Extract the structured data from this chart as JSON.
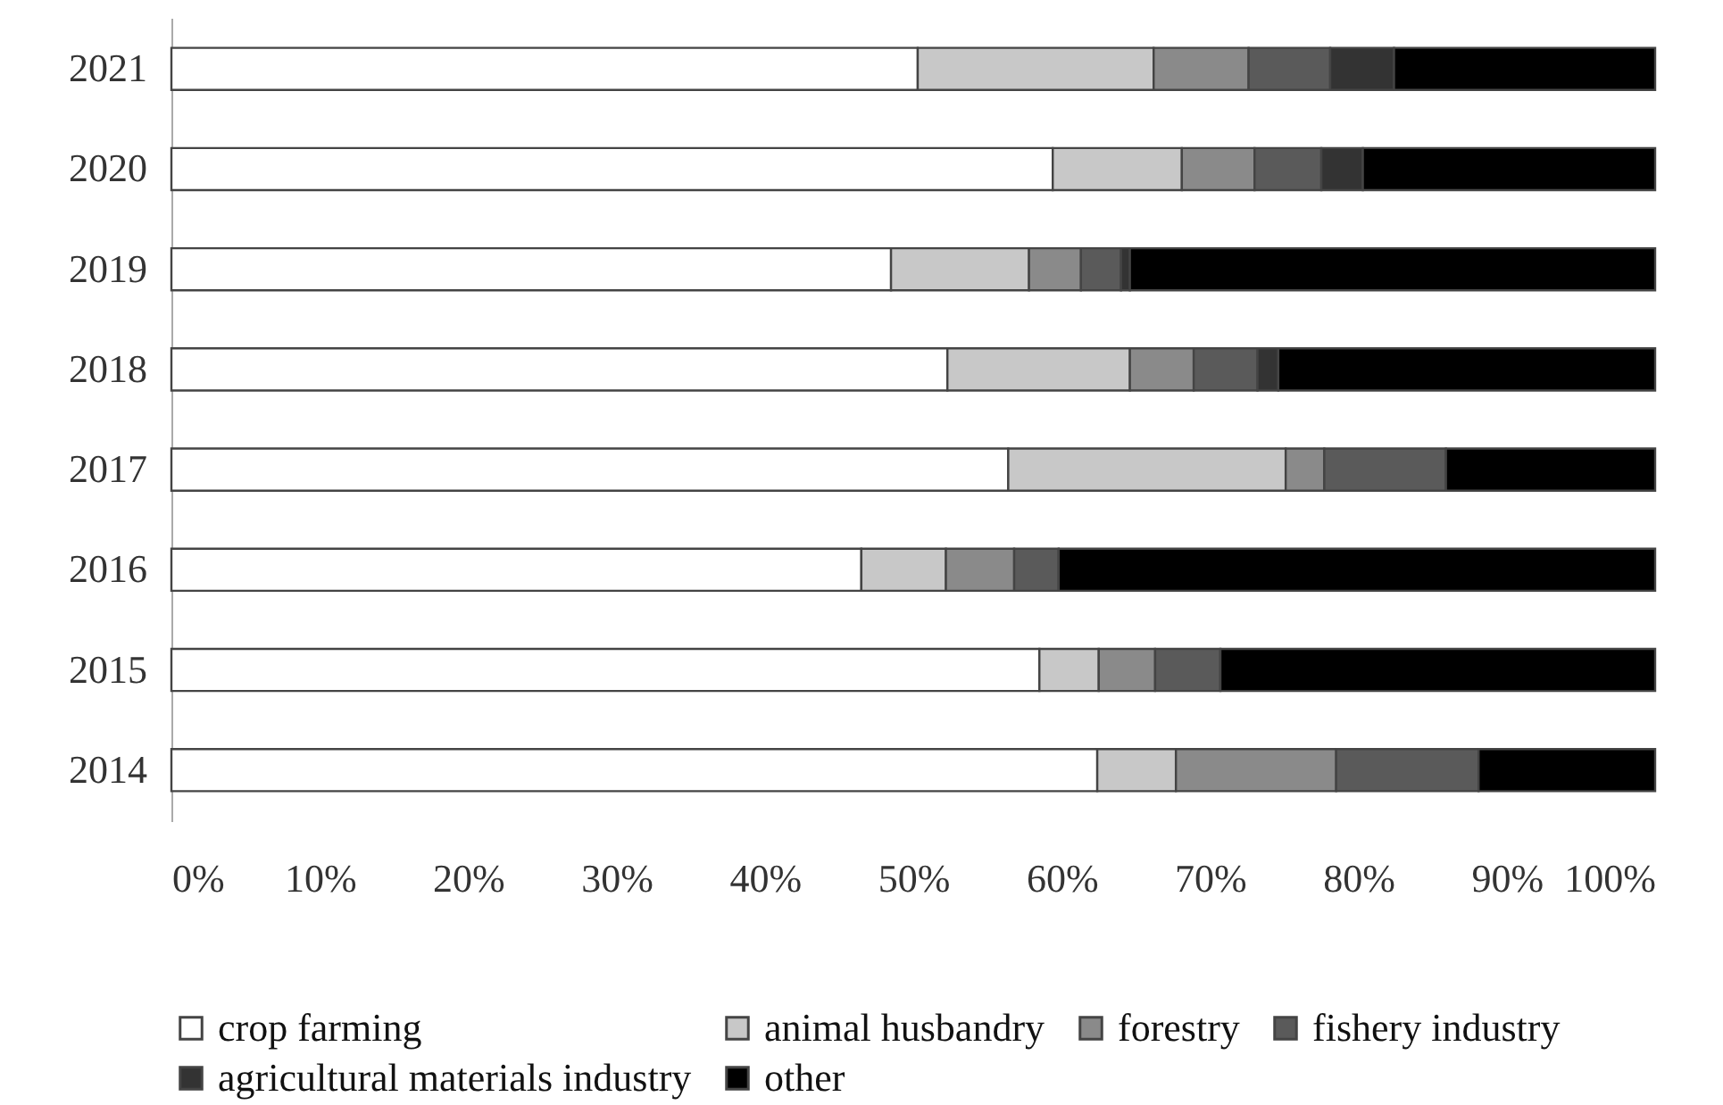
{
  "chart_data": {
    "type": "bar",
    "orientation": "horizontal",
    "stacked": true,
    "categories": [
      "2021",
      "2020",
      "2019",
      "2018",
      "2017",
      "2016",
      "2015",
      "2014"
    ],
    "series": [
      {
        "name": "crop farming",
        "color": "#ffffff",
        "values": [
          50.3,
          59.4,
          48.5,
          52.3,
          56.4,
          46.5,
          58.5,
          62.4
        ]
      },
      {
        "name": "animal husbandry",
        "color": "#c8c8c8",
        "values": [
          15.9,
          8.7,
          9.3,
          12.3,
          18.7,
          5.7,
          4.0,
          5.3
        ]
      },
      {
        "name": "forestry",
        "color": "#8a8a8a",
        "values": [
          6.4,
          4.9,
          3.5,
          4.3,
          2.6,
          4.6,
          3.8,
          10.8
        ]
      },
      {
        "name": "fishery industry",
        "color": "#5a5a5a",
        "values": [
          5.5,
          4.5,
          2.7,
          4.3,
          8.2,
          3.0,
          4.4,
          9.6
        ]
      },
      {
        "name": "agricultural materials industry",
        "color": "#333333",
        "values": [
          4.3,
          2.8,
          0.6,
          1.4,
          0,
          0,
          0,
          0
        ]
      },
      {
        "name": "other",
        "color": "#000000",
        "values": [
          17.6,
          19.7,
          35.4,
          25.4,
          14.1,
          40.2,
          29.3,
          11.9
        ]
      }
    ],
    "xlim": [
      0,
      100
    ],
    "xticks": [
      {
        "value": 0,
        "label": "0%"
      },
      {
        "value": 10,
        "label": "10%"
      },
      {
        "value": 20,
        "label": "20%"
      },
      {
        "value": 30,
        "label": "30%"
      },
      {
        "value": 40,
        "label": "40%"
      },
      {
        "value": 50,
        "label": "50%"
      },
      {
        "value": 60,
        "label": "60%"
      },
      {
        "value": 70,
        "label": "70%"
      },
      {
        "value": 80,
        "label": "80%"
      },
      {
        "value": 90,
        "label": "90%"
      },
      {
        "value": 100,
        "label": "100%"
      }
    ],
    "grid": false,
    "legend": "bottom"
  }
}
